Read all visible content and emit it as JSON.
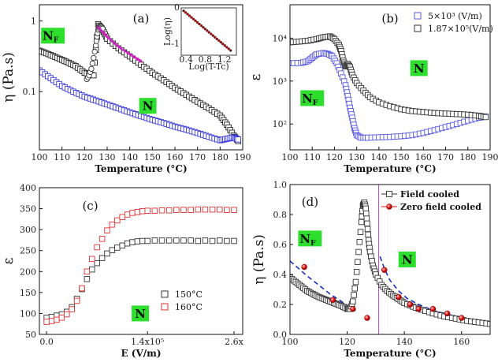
{
  "chart_data": [
    {
      "id": "a",
      "panel_label": "(a)",
      "type": "scatter",
      "xlabel": "Temperature (°C)",
      "ylabel": "η (Pa.s)",
      "xlim": [
        100,
        190
      ],
      "ylim_log": [
        0.015,
        1.7
      ],
      "yscale": "log",
      "xticks": [
        100,
        110,
        120,
        130,
        140,
        150,
        160,
        170,
        180,
        190
      ],
      "yticks": [
        {
          "v": 1,
          "label": "1"
        },
        {
          "v": 0.1,
          "label": "0.1"
        }
      ],
      "phase_labels": [
        {
          "text": "NF",
          "sub": "F",
          "base": "N",
          "x": 106,
          "y": 0.62
        },
        {
          "text": "N",
          "base": "N",
          "x": 148,
          "y": 0.063
        }
      ],
      "series": [
        {
          "name": "upper (black)",
          "color": "#222222",
          "x": [
            100,
            104,
            108,
            112,
            116,
            120,
            124,
            126,
            128,
            130,
            135,
            140,
            145,
            150,
            155,
            160,
            165,
            170,
            175,
            180,
            183,
            186,
            188
          ],
          "y": [
            0.38,
            0.34,
            0.3,
            0.265,
            0.23,
            0.185,
            0.17,
            0.9,
            0.75,
            0.56,
            0.41,
            0.315,
            0.24,
            0.185,
            0.145,
            0.113,
            0.09,
            0.072,
            0.058,
            0.046,
            0.034,
            0.024,
            0.02
          ]
        },
        {
          "name": "lower (blue)",
          "color": "#3a3ad8",
          "x": [
            100,
            105,
            110,
            115,
            120,
            125,
            130,
            135,
            140,
            145,
            150,
            155,
            160,
            165,
            170,
            175,
            180,
            183,
            186,
            188
          ],
          "y": [
            0.2,
            0.155,
            0.12,
            0.1,
            0.085,
            0.075,
            0.066,
            0.058,
            0.051,
            0.045,
            0.04,
            0.036,
            0.032,
            0.029,
            0.026,
            0.023,
            0.0205,
            0.0215,
            0.0225,
            0.021
          ]
        },
        {
          "name": "open circles",
          "color": "#333333",
          "x": [
            121,
            122,
            123,
            124,
            125,
            125.5,
            126,
            126.5,
            127,
            127.5,
            128
          ],
          "y": [
            0.15,
            0.17,
            0.21,
            0.3,
            0.45,
            0.6,
            0.75,
            0.82,
            0.86,
            0.83,
            0.78
          ]
        },
        {
          "name": "magenta fit",
          "color": "#d020c0",
          "x": [
            126,
            128,
            130,
            133,
            136,
            140,
            143,
            145
          ],
          "y": [
            0.82,
            0.7,
            0.6,
            0.49,
            0.41,
            0.34,
            0.295,
            0.27
          ]
        }
      ],
      "inset": {
        "xlabel": "Log(T-Tc)",
        "ylabel": "Log(η)",
        "xlim": [
          0.3,
          1.45
        ],
        "ylim": [
          -1.3,
          0.0
        ],
        "xticks": [
          {
            "v": 0.4,
            "label": "0.4"
          },
          {
            "v": 0.8,
            "label": "0.8"
          },
          {
            "v": 1.2,
            "label": "1.2"
          }
        ],
        "yticks": [
          {
            "v": 0,
            "label": "0"
          },
          {
            "v": -1,
            "label": "-1"
          }
        ],
        "line": [
          [
            0.35,
            -0.08
          ],
          [
            1.33,
            -1.17
          ]
        ]
      }
    },
    {
      "id": "b",
      "panel_label": "(b)",
      "type": "scatter",
      "xlabel": "Temperature (°C)",
      "ylabel": "ε",
      "xlim": [
        100,
        190
      ],
      "yscale": "log",
      "ylim_log": [
        25,
        60000
      ],
      "xticks": [
        100,
        110,
        120,
        130,
        140,
        150,
        160,
        170,
        180,
        190
      ],
      "yticks": [
        {
          "v": 100,
          "label": "10²"
        },
        {
          "v": 1000,
          "label": "10³"
        },
        {
          "v": 10000,
          "label": "10⁴"
        }
      ],
      "legend": [
        {
          "label": "5×10³ (V/m)",
          "color": "#5a5ae0"
        },
        {
          "label": "1.87×10⁵(V/m)",
          "color": "#333333"
        }
      ],
      "phase_labels": [
        {
          "text": "NF",
          "sub": "F",
          "base": "N",
          "x": 110,
          "y": 400
        },
        {
          "text": "N",
          "base": "N",
          "x": 158,
          "y": 2000
        }
      ],
      "series": [
        {
          "name": "5×10³ (V/m)",
          "color": "#5a5ae0",
          "x": [
            100,
            105,
            108,
            110,
            112,
            115,
            117,
            119,
            121,
            123,
            125,
            126,
            127,
            128,
            129,
            130,
            132,
            135,
            140,
            145,
            150,
            155,
            160,
            165,
            170,
            175,
            180,
            185,
            188
          ],
          "y": [
            2600,
            2650,
            2900,
            3500,
            4200,
            4500,
            4300,
            3800,
            2600,
            1500,
            800,
            450,
            240,
            140,
            80,
            55,
            48,
            48,
            49,
            50,
            52,
            55,
            62,
            72,
            85,
            100,
            120,
            140,
            150
          ]
        },
        {
          "name": "1.87×10⁵(V/m)",
          "color": "#333333",
          "x": [
            100,
            104,
            108,
            112,
            115,
            118,
            120,
            122,
            123,
            124,
            125,
            126,
            127,
            128,
            130,
            133,
            136,
            140,
            145,
            150,
            155,
            160,
            165,
            170,
            175,
            180,
            185,
            188
          ],
          "y": [
            8000,
            8300,
            8700,
            9500,
            10500,
            11000,
            9500,
            7000,
            5000,
            3000,
            2200,
            2500,
            2100,
            1400,
            900,
            600,
            420,
            320,
            260,
            220,
            200,
            190,
            180,
            175,
            170,
            165,
            155,
            145
          ]
        }
      ]
    },
    {
      "id": "c",
      "panel_label": "(c)",
      "type": "scatter",
      "xlabel": "E (V/m)",
      "ylabel": "ε",
      "xlim": [
        -0.1,
        2.72
      ],
      "ylim": [
        50,
        400
      ],
      "xticks": [
        {
          "v": 0,
          "label": "0.0"
        },
        {
          "v": 1.4,
          "label": "1.4x10⁵"
        },
        {
          "v": 2.6,
          "label": "2.6x"
        }
      ],
      "yticks": [
        50,
        100,
        150,
        200,
        250,
        300,
        350,
        400
      ],
      "legend": [
        {
          "label": "150°C",
          "color": "#333333"
        },
        {
          "label": "160°C",
          "color": "#e03030"
        }
      ],
      "phase_labels": [
        {
          "text": "N",
          "base": "N",
          "x": 1.3,
          "y": 100
        }
      ],
      "series": [
        {
          "name": "150°C",
          "color": "#333333",
          "x": [
            0,
            0.07,
            0.14,
            0.21,
            0.28,
            0.35,
            0.42,
            0.49,
            0.56,
            0.63,
            0.7,
            0.77,
            0.84,
            0.91,
            0.98,
            1.05,
            1.12,
            1.19,
            1.26,
            1.33,
            1.4,
            1.5,
            1.6,
            1.7,
            1.8,
            1.9,
            2.0,
            2.1,
            2.2,
            2.3,
            2.4,
            2.5,
            2.6
          ],
          "y": [
            90,
            92,
            95,
            98,
            104,
            115,
            135,
            158,
            182,
            205,
            220,
            232,
            243,
            251,
            257,
            262,
            267,
            270,
            272,
            273,
            273,
            274,
            274,
            274,
            274,
            274,
            274,
            273,
            274,
            273,
            274,
            273,
            273
          ]
        },
        {
          "name": "160°C",
          "color": "#e03030",
          "x": [
            0,
            0.07,
            0.14,
            0.21,
            0.28,
            0.35,
            0.42,
            0.49,
            0.56,
            0.63,
            0.7,
            0.77,
            0.84,
            0.91,
            0.98,
            1.05,
            1.12,
            1.19,
            1.26,
            1.33,
            1.4,
            1.5,
            1.6,
            1.7,
            1.8,
            1.9,
            2.0,
            2.1,
            2.2,
            2.3,
            2.4,
            2.5,
            2.6
          ],
          "y": [
            80,
            82,
            85,
            90,
            98,
            110,
            130,
            160,
            200,
            230,
            258,
            278,
            298,
            312,
            322,
            330,
            336,
            340,
            342,
            344,
            345,
            345,
            346,
            346,
            347,
            347,
            347,
            348,
            348,
            348,
            348,
            347,
            347
          ]
        }
      ]
    },
    {
      "id": "d",
      "panel_label": "(d)",
      "type": "scatter",
      "xlabel": "Temperature (°C)",
      "ylabel": "η (Pa.s)",
      "xlim": [
        100,
        170
      ],
      "ylim": [
        0,
        1.0
      ],
      "xticks": [
        100,
        120,
        140,
        160
      ],
      "yticks": [
        0.0,
        0.2,
        0.4,
        0.6,
        0.8,
        1.0
      ],
      "vline_x": 131,
      "legend": [
        {
          "label": "Field cooled",
          "color": "#333333"
        },
        {
          "label": "Zero field cooled",
          "color": "#e01010"
        }
      ],
      "phase_labels": [
        {
          "text": "NF",
          "sub": "F",
          "base": "N",
          "x": 107,
          "y": 0.64
        },
        {
          "text": "N",
          "base": "N",
          "x": 141,
          "y": 0.5
        }
      ],
      "series": [
        {
          "name": "Field cooled",
          "color": "#333333",
          "x": [
            100,
            102,
            104,
            106,
            108,
            110,
            112,
            114,
            116,
            118,
            120,
            121,
            122,
            123,
            124,
            125,
            125.5,
            126,
            126.5,
            127,
            127.5,
            128,
            129,
            130,
            132,
            134,
            136,
            138,
            140,
            143,
            146,
            150,
            154,
            158,
            162,
            166,
            170
          ],
          "y": [
            0.38,
            0.35,
            0.32,
            0.29,
            0.27,
            0.25,
            0.235,
            0.22,
            0.205,
            0.19,
            0.17,
            0.17,
            0.22,
            0.35,
            0.55,
            0.75,
            0.86,
            0.88,
            0.84,
            0.74,
            0.63,
            0.55,
            0.46,
            0.4,
            0.33,
            0.29,
            0.26,
            0.235,
            0.21,
            0.185,
            0.165,
            0.14,
            0.12,
            0.105,
            0.09,
            0.08,
            0.07
          ]
        },
        {
          "name": "Zero field cooled",
          "color": "#e01010",
          "x": [
            105,
            115,
            122,
            127,
            133,
            138,
            142,
            145,
            150,
            155,
            160
          ],
          "y": [
            0.45,
            0.23,
            0.17,
            0.11,
            0.43,
            0.25,
            0.2,
            0.17,
            0.17,
            0.14,
            0.11
          ]
        }
      ],
      "fit_lines": [
        {
          "color": "#1a2fc8",
          "x": [
            100,
            103,
            106,
            110,
            114,
            118,
            121,
            123
          ],
          "y": [
            0.49,
            0.44,
            0.39,
            0.33,
            0.27,
            0.22,
            0.18,
            0.16
          ]
        },
        {
          "color": "#1a2fc8",
          "x": [
            131.5,
            133,
            135,
            138,
            141,
            145,
            150,
            155,
            160,
            163
          ],
          "y": [
            0.52,
            0.44,
            0.36,
            0.29,
            0.24,
            0.2,
            0.16,
            0.135,
            0.11,
            0.1
          ]
        }
      ]
    }
  ]
}
